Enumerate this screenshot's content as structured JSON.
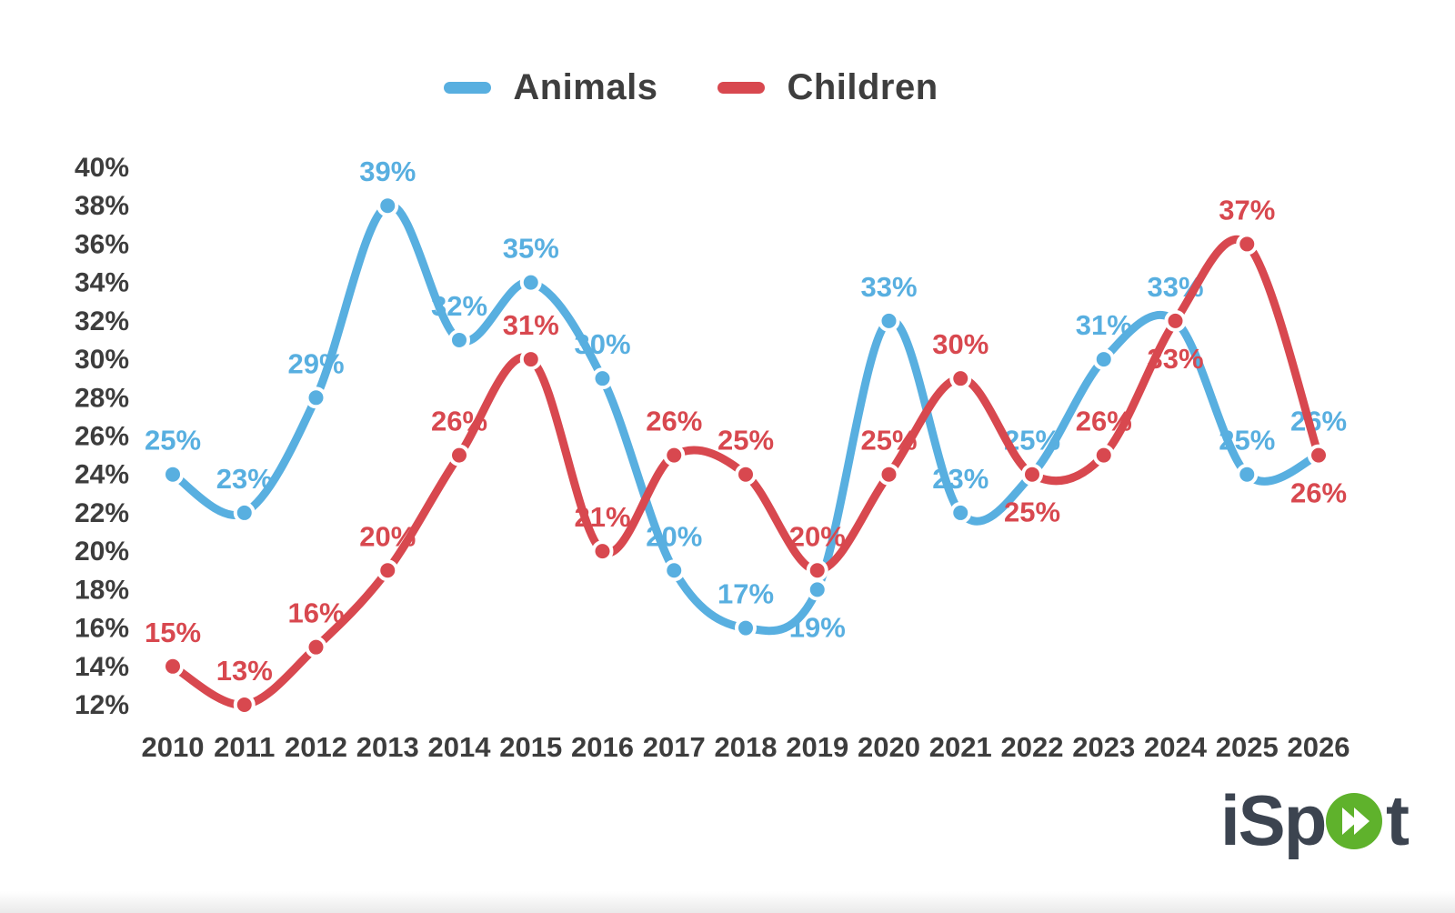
{
  "chart_data": {
    "type": "line",
    "title": "",
    "categories": [
      "2010",
      "2011",
      "2012",
      "2013",
      "2014",
      "2015",
      "2016",
      "2017",
      "2018",
      "2019",
      "2020",
      "2021",
      "2022",
      "2023",
      "2024",
      "2025",
      "2026"
    ],
    "series": [
      {
        "name": "Animals",
        "color": "#58AFE0",
        "values": [
          25,
          23,
          29,
          39,
          32,
          35,
          30,
          20,
          17,
          19,
          33,
          23,
          25,
          31,
          33,
          25,
          26
        ]
      },
      {
        "name": "Children",
        "color": "#D8484F",
        "values": [
          15,
          13,
          16,
          20,
          26,
          31,
          21,
          26,
          25,
          20,
          25,
          30,
          25,
          26,
          33,
          37,
          26
        ]
      }
    ],
    "y_axis": {
      "min": 12,
      "max": 40,
      "step": 2,
      "tick_suffix": "%"
    },
    "point_label_suffix": "%",
    "grid": false,
    "legend_position": "top-center",
    "axis_text_color": "#3d3d3d",
    "label_below": {
      "Animals": [
        "2019"
      ],
      "Children": [
        "2022",
        "2024",
        "2026"
      ]
    }
  },
  "branding": {
    "logo_full": "iSpot",
    "logo_prefix": "iSp",
    "logo_suffix": "t",
    "logo_text_color": "#3c4450",
    "logo_green": "#5fb22c"
  }
}
